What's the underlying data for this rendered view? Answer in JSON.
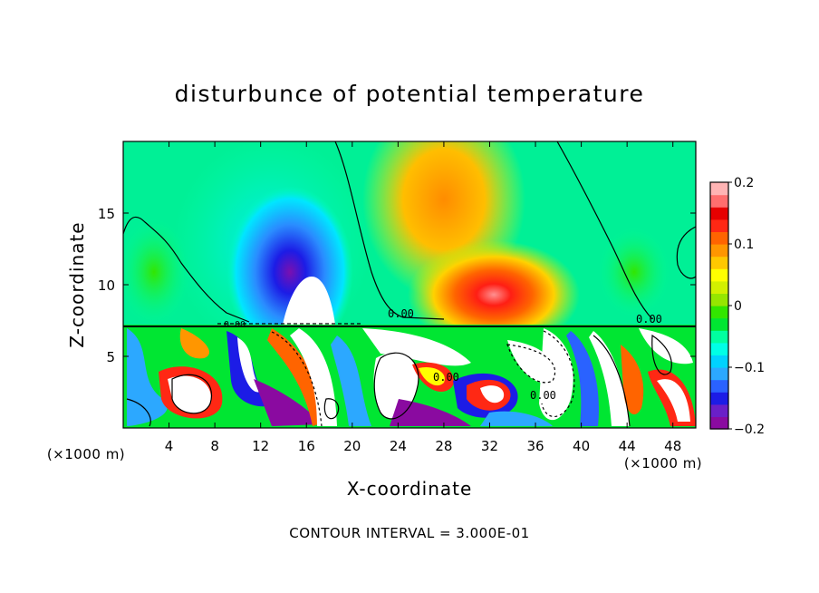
{
  "chart_data": {
    "type": "heatmap",
    "title": "disturbunce of potential temperature",
    "xlabel": "X-coordinate",
    "ylabel": "Z-coordinate",
    "x_unit": "(×1000 m)",
    "y_unit": "(×1000 m)",
    "xlim": [
      0,
      50
    ],
    "ylim": [
      0,
      20
    ],
    "x_ticks": [
      "4",
      "8",
      "12",
      "16",
      "20",
      "24",
      "28",
      "32",
      "36",
      "40",
      "44",
      "48"
    ],
    "y_ticks": [
      "5",
      "10",
      "15"
    ],
    "colorbar": {
      "range": [
        -0.2,
        0.2
      ],
      "tick_labels": [
        "0.2",
        "0.1",
        "0",
        "−0.1",
        "−0.2"
      ],
      "colors": [
        "#8a0aa0",
        "#6a1fc8",
        "#1c1ce6",
        "#2a62ff",
        "#2ca8ff",
        "#00d2ff",
        "#00ffe6",
        "#00ffa0",
        "#00e632",
        "#32e600",
        "#96e600",
        "#d2f000",
        "#ffff00",
        "#ffc800",
        "#ff9600",
        "#ff6400",
        "#ff2814",
        "#e60000",
        "#ff6e6e",
        "#ffb4b4"
      ]
    },
    "contour_labels": [
      "0.00",
      "0.00",
      "0.00",
      "0.00",
      "0.00"
    ],
    "annotation": "CONTOUR INTERVAL = 3.000E-01",
    "grid": false,
    "legend": "colorbar-right"
  }
}
